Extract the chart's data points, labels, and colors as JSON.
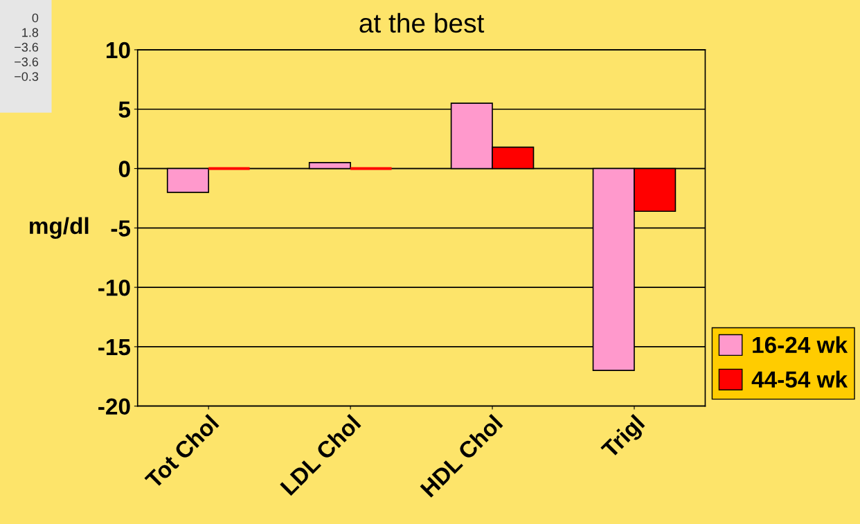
{
  "chart_data": {
    "type": "bar",
    "title": "at the best",
    "ylabel": "mg/dl",
    "categories": [
      "Tot Chol",
      "LDL Chol",
      "HDL Chol",
      "Trigl"
    ],
    "series": [
      {
        "name": "16-24 wk",
        "color": "#ff99cc",
        "values": [
          -2,
          0.5,
          5.5,
          -17
        ]
      },
      {
        "name": "44-54 wk",
        "color": "#ff0000",
        "values": [
          0,
          0,
          1.8,
          -3.6
        ]
      }
    ],
    "ylim": [
      -20,
      10
    ],
    "yticks": [
      {
        "value": -20,
        "label": "-20"
      },
      {
        "value": -15,
        "label": "-15"
      },
      {
        "value": -10,
        "label": "-10"
      },
      {
        "value": -5,
        "label": "-5"
      },
      0,
      5,
      10
    ],
    "grid": "y",
    "legend": "bottom right",
    "annotations": [
      "0",
      "1.8",
      "−3.6",
      "−3.6",
      "−0.3"
    ]
  }
}
